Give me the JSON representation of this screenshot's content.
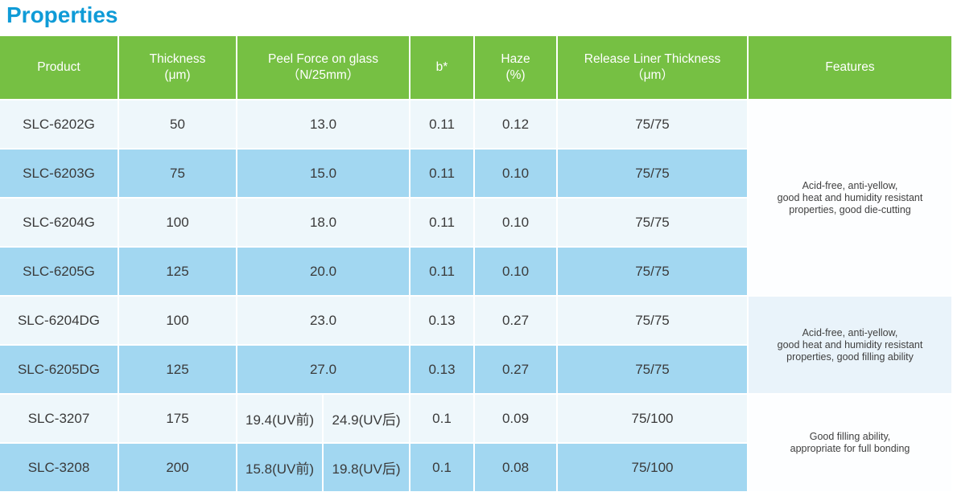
{
  "title": "Properties",
  "colors": {
    "title_blue": "#0f9bd7",
    "header_green": "#76c043",
    "row_light": "#eef7fb",
    "row_blue": "#a2d7f1",
    "features_white": "#fdfeff",
    "features_tint": "#e9f3fa",
    "header_text": "#ffffff",
    "body_text": "#3a3a3a"
  },
  "header": {
    "product": "Product",
    "thickness_line1": "Thickness",
    "thickness_line2": "(μm)",
    "peel_line1": "Peel Force on glass",
    "peel_line2": "（N/25mm）",
    "b_star": "b*",
    "haze_line1": "Haze",
    "haze_line2": "(%)",
    "release_line1": "Release Liner Thickness",
    "release_line2": "（μm）",
    "features": "Features"
  },
  "rows": [
    {
      "product": "SLC-6202G",
      "thickness": "50",
      "peel": "13.0",
      "b": "0.11",
      "haze": "0.12",
      "release": "75/75"
    },
    {
      "product": "SLC-6203G",
      "thickness": "75",
      "peel": "15.0",
      "b": "0.11",
      "haze": "0.10",
      "release": "75/75"
    },
    {
      "product": "SLC-6204G",
      "thickness": "100",
      "peel": "18.0",
      "b": "0.11",
      "haze": "0.10",
      "release": "75/75"
    },
    {
      "product": "SLC-6205G",
      "thickness": "125",
      "peel": "20.0",
      "b": "0.11",
      "haze": "0.10",
      "release": "75/75"
    },
    {
      "product": "SLC-6204DG",
      "thickness": "100",
      "peel": "23.0",
      "b": "0.13",
      "haze": "0.27",
      "release": "75/75"
    },
    {
      "product": "SLC-6205DG",
      "thickness": "125",
      "peel": "27.0",
      "b": "0.13",
      "haze": "0.27",
      "release": "75/75"
    },
    {
      "product": "SLC-3207",
      "thickness": "175",
      "peel_uv_before": "19.4(UV前)",
      "peel_uv_after": "24.9(UV后)",
      "b": "0.1",
      "haze": "0.09",
      "release": "75/100"
    },
    {
      "product": "SLC-3208",
      "thickness": "200",
      "peel_uv_before": "15.8(UV前)",
      "peel_uv_after": "19.8(UV后)",
      "b": "0.1",
      "haze": "0.08",
      "release": "75/100"
    }
  ],
  "feature_groups": [
    {
      "lines": [
        "Acid-free, anti-yellow,",
        "good heat and humidity resistant",
        "properties, good die-cutting"
      ]
    },
    {
      "lines": [
        "Acid-free, anti-yellow,",
        "good heat and humidity resistant",
        "properties, good filling ability"
      ]
    },
    {
      "lines": [
        "Good filling ability,",
        "appropriate for full bonding"
      ]
    }
  ]
}
